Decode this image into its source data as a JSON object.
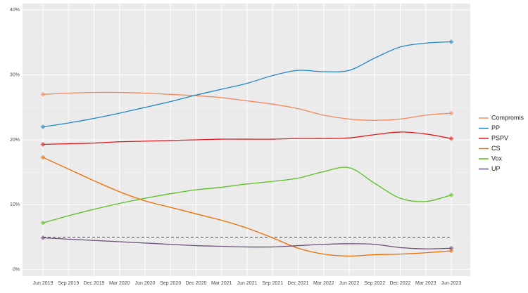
{
  "chart_data": {
    "type": "line",
    "categories": [
      "Jun 2019",
      "Sep 2019",
      "Dec 2019",
      "Mar 2020",
      "Jun 2020",
      "Sep 2020",
      "Dec 2020",
      "Mar 2021",
      "Jun 2021",
      "Sep 2021",
      "Dec 2021",
      "Mar 2022",
      "Jun 2022",
      "Sep 2022",
      "Dec 2022",
      "Mar 2023",
      "Jun 2023"
    ],
    "series": [
      {
        "name": "Compromis",
        "color": "#f4895f",
        "values": [
          27,
          27.2,
          27.3,
          27.3,
          27.2,
          27,
          26.8,
          26.5,
          26,
          25.5,
          24.8,
          23.8,
          23.2,
          23,
          23.2,
          23.8,
          24.1
        ]
      },
      {
        "name": "PP",
        "color": "#1f87c9",
        "values": [
          22,
          22.6,
          23.3,
          24.1,
          25,
          25.9,
          26.9,
          27.8,
          28.7,
          29.9,
          30.7,
          30.5,
          30.7,
          32.6,
          34.3,
          34.9,
          35.1
        ]
      },
      {
        "name": "PSPV",
        "color": "#e31a1c",
        "values": [
          19.3,
          19.4,
          19.5,
          19.7,
          19.8,
          19.9,
          20,
          20.1,
          20.1,
          20.1,
          20.2,
          20.2,
          20.3,
          20.8,
          21.2,
          20.9,
          20.2
        ]
      },
      {
        "name": "CS",
        "color": "#ef6c00",
        "values": [
          17.3,
          15.5,
          13.7,
          12,
          10.6,
          9.6,
          8.6,
          7.6,
          6.4,
          4.9,
          3.3,
          2.4,
          2.1,
          2.3,
          2.4,
          2.6,
          2.9
        ]
      },
      {
        "name": "Vox",
        "color": "#5bbf21",
        "values": [
          7.2,
          8.3,
          9.3,
          10.2,
          11,
          11.7,
          12.3,
          12.7,
          13.2,
          13.6,
          14.1,
          15.1,
          15.7,
          13.3,
          11,
          10.5,
          11.5
        ]
      },
      {
        "name": "UP",
        "color": "#6d4d7a",
        "values": [
          4.9,
          4.7,
          4.5,
          4.3,
          4.1,
          3.9,
          3.7,
          3.6,
          3.5,
          3.5,
          3.7,
          3.9,
          4,
          3.9,
          3.4,
          3.2,
          3.3
        ]
      }
    ],
    "threshold": 5,
    "ylim": [
      -1,
      41
    ],
    "yticks": [
      {
        "value": 0,
        "label": "0%"
      },
      {
        "value": 10,
        "label": "10%"
      },
      {
        "value": 20,
        "label": "20%"
      },
      {
        "value": 30,
        "label": "30%"
      },
      {
        "value": 40,
        "label": "40%"
      }
    ],
    "grid": true
  }
}
